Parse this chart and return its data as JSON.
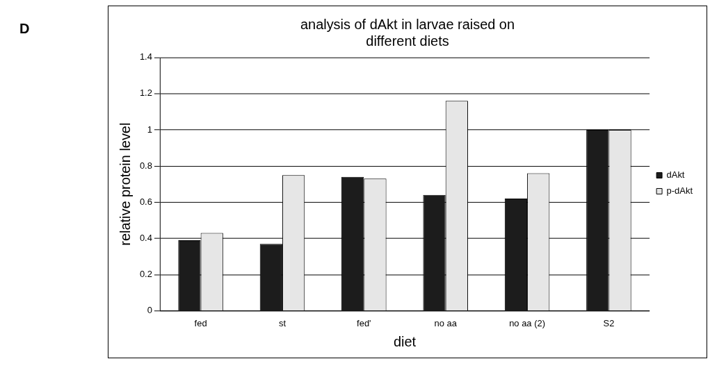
{
  "chart_data": {
    "type": "bar",
    "title": [
      "analysis of dAkt in larvae raised on",
      "different diets"
    ],
    "xlabel": "diet",
    "ylabel": "relative protein level",
    "categories": [
      "fed",
      "st",
      "fed'",
      "no aa",
      "no aa (2)",
      "S2"
    ],
    "series": [
      {
        "name": "dAkt",
        "color": "#1c1c1c",
        "values": [
          0.39,
          0.37,
          0.74,
          0.64,
          0.62,
          1.0
        ]
      },
      {
        "name": "p-dAkt",
        "color": "#e6e6e6",
        "values": [
          0.43,
          0.75,
          0.73,
          1.16,
          0.76,
          1.0
        ]
      }
    ],
    "ylim": [
      0,
      1.4
    ],
    "yticks": [
      0,
      0.2,
      0.4,
      0.6,
      0.8,
      1,
      1.2,
      1.4
    ],
    "grid": "y",
    "legend": "right",
    "annotations": [
      "D"
    ]
  }
}
